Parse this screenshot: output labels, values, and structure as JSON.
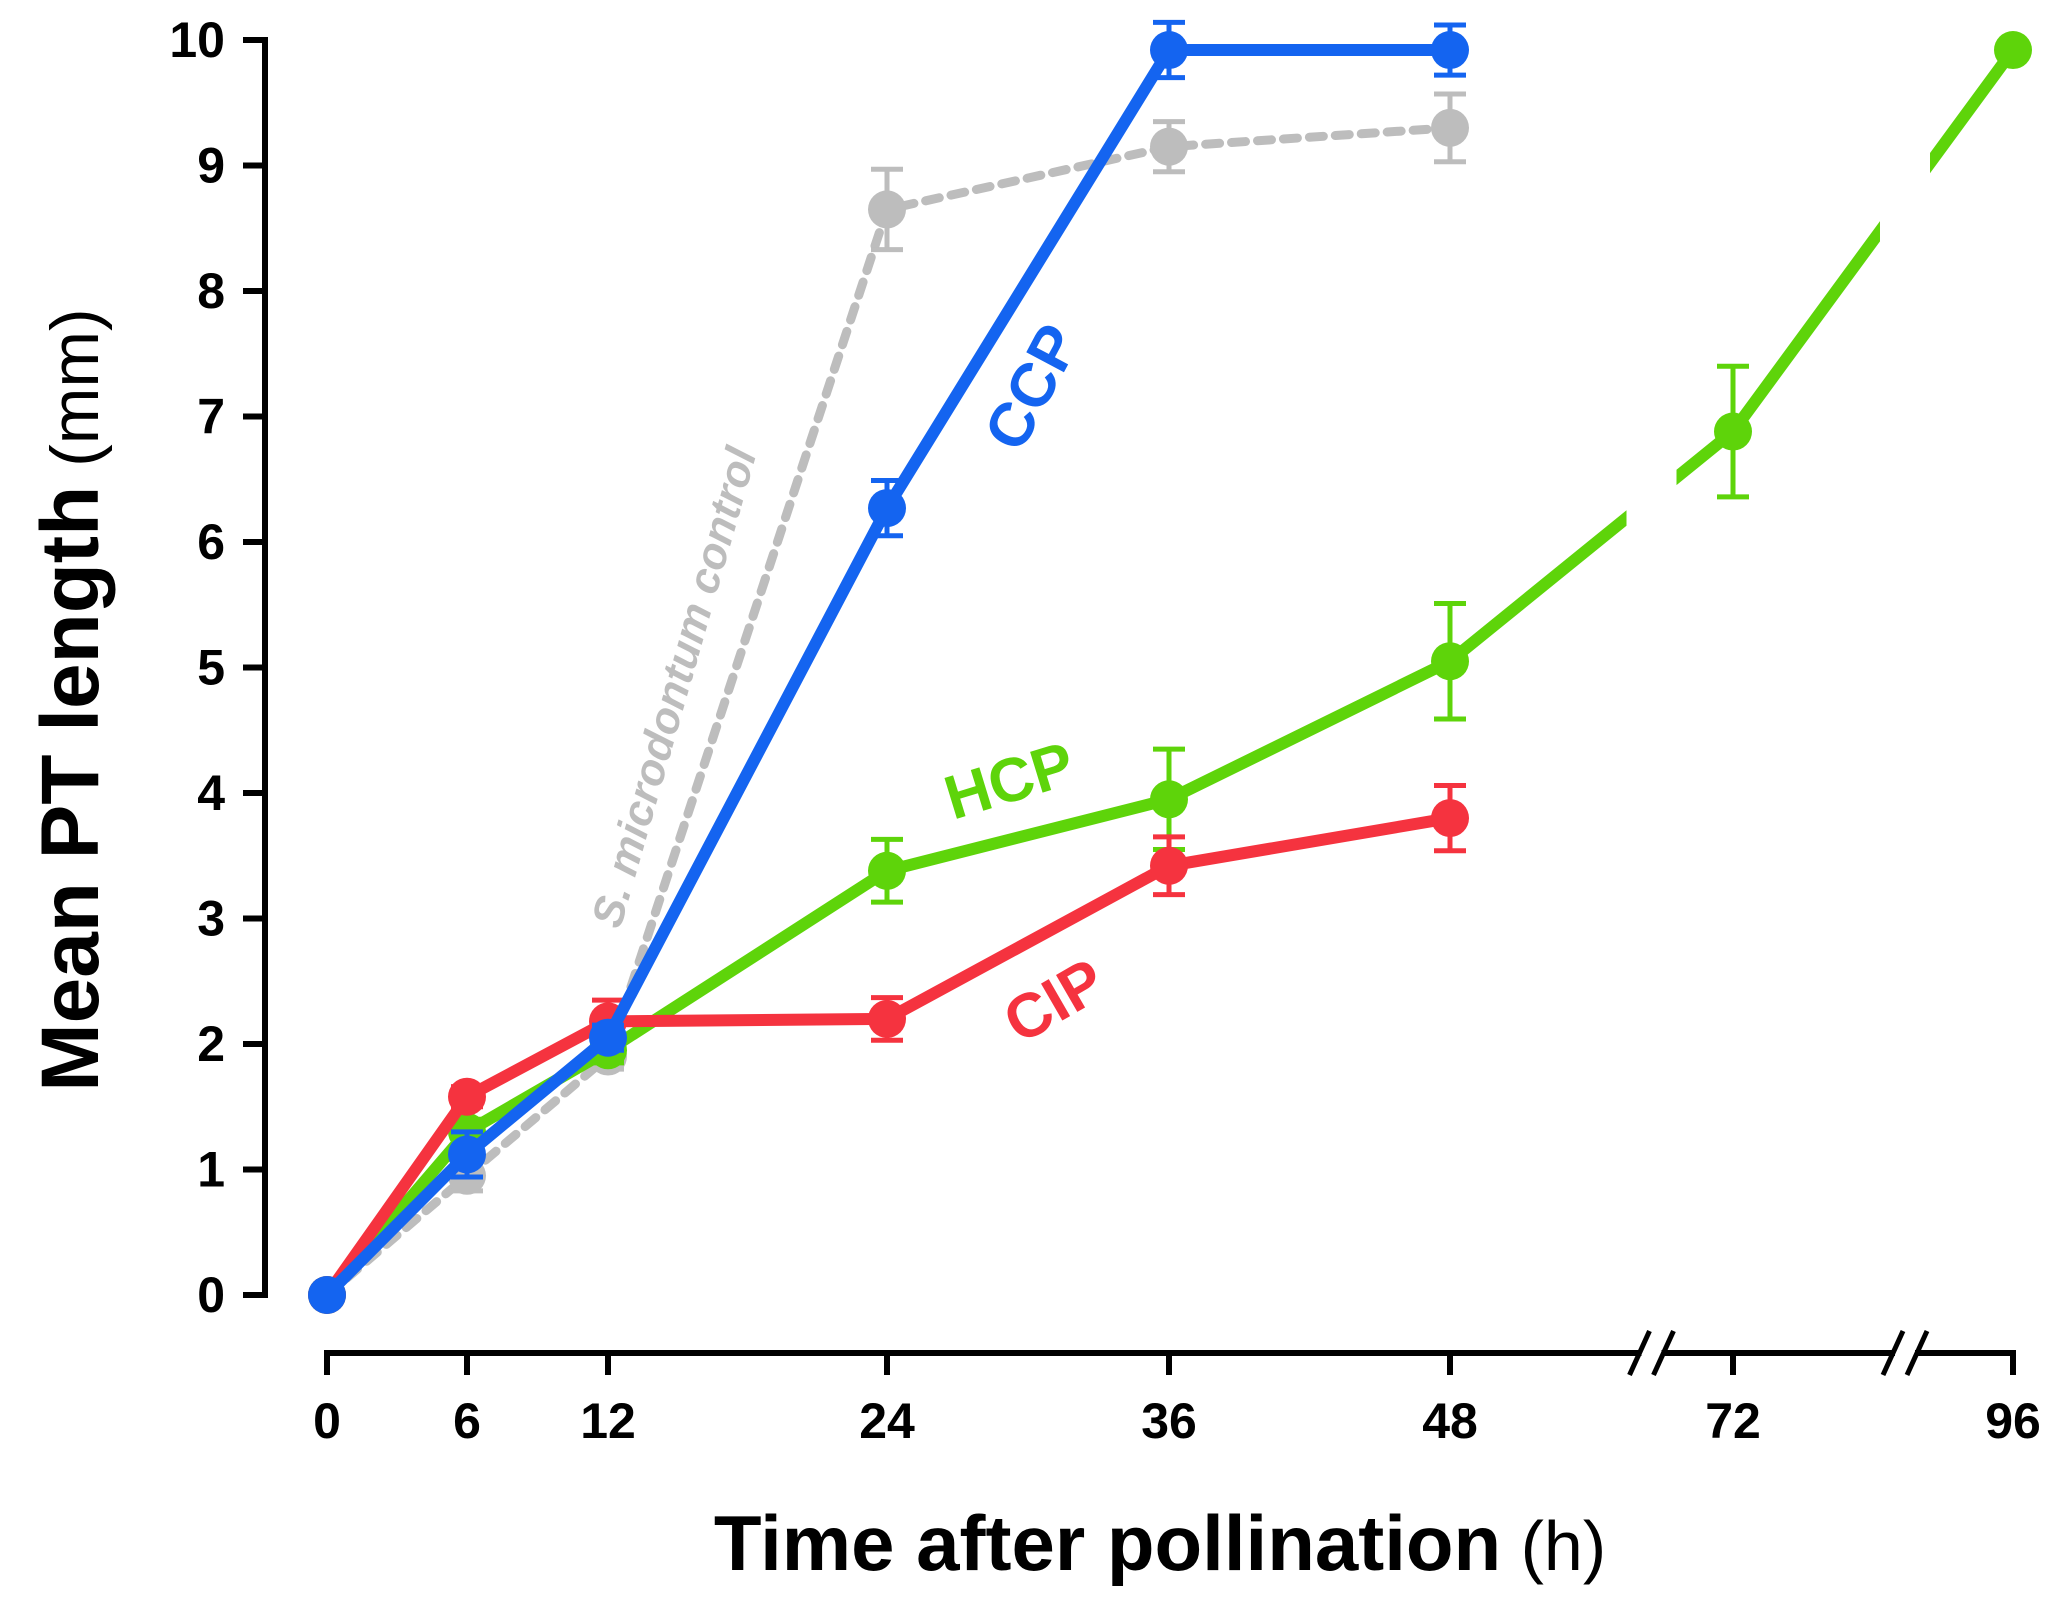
{
  "chart_data": {
    "type": "line",
    "xlabel_main": "Time after pollination",
    "xlabel_unit": " (h)",
    "ylabel_main": "Mean PT length",
    "ylabel_unit": " (mm)",
    "x_ticks": [
      "0",
      "6",
      "12",
      "24",
      "36",
      "48",
      "72",
      "96"
    ],
    "y_ticks": [
      "0",
      "1",
      "2",
      "3",
      "4",
      "5",
      "6",
      "7",
      "8",
      "9",
      "10"
    ],
    "ylim": [
      0,
      10
    ],
    "axis_breaks": [
      "48-72",
      "72-96"
    ],
    "series": [
      {
        "name": "S. microdontum control",
        "color": "#BDBDBD",
        "dashed": true,
        "x": [
          0,
          6,
          12,
          24,
          36,
          48
        ],
        "y": [
          0,
          0.95,
          1.9,
          8.65,
          9.15,
          9.3
        ],
        "err": [
          0,
          0.12,
          0.1,
          0.32,
          0.2,
          0.27
        ]
      },
      {
        "name": "HCP",
        "color": "#5ED40A",
        "dashed": false,
        "x": [
          0,
          6,
          12,
          24,
          36,
          48,
          72,
          96
        ],
        "y": [
          0,
          1.3,
          1.95,
          3.38,
          3.95,
          5.05,
          6.88,
          9.92
        ],
        "err": [
          0,
          0.1,
          0.1,
          0.25,
          0.4,
          0.46,
          0.52,
          0.05
        ]
      },
      {
        "name": "CIP",
        "color": "#F5333F",
        "dashed": false,
        "x": [
          0,
          6,
          12,
          24,
          36,
          48
        ],
        "y": [
          0,
          1.58,
          2.18,
          2.2,
          3.42,
          3.8
        ],
        "err": [
          0,
          0.08,
          0.17,
          0.17,
          0.23,
          0.26
        ]
      },
      {
        "name": "CCP",
        "color": "#1464F0",
        "dashed": false,
        "x": [
          0,
          6,
          12,
          24,
          36,
          48
        ],
        "y": [
          0,
          1.12,
          2.05,
          6.27,
          9.92,
          9.92
        ],
        "err": [
          0,
          0.18,
          0.1,
          0.22,
          0.22,
          0.2
        ]
      }
    ],
    "annotations": [
      "S. microdontum control",
      "CCP",
      "HCP",
      "CIP"
    ]
  }
}
